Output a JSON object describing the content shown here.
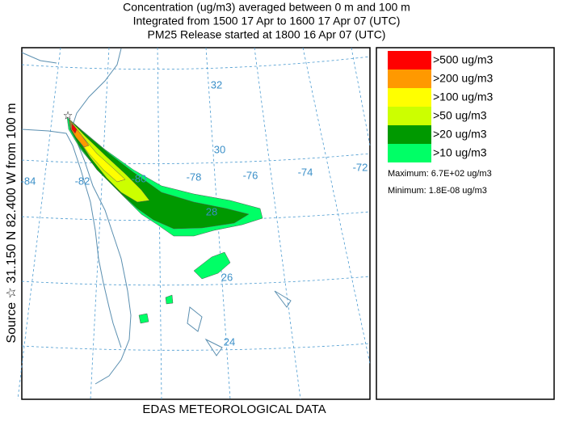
{
  "header": {
    "lines": [
      "Concentration  (ug/m3) averaged between     0 m and   100 m",
      "Integrated from 1500 17 Apr to 1600 17 Apr 07 (UTC)",
      "PM25 Release started at 1800 16 Apr 07 (UTC)"
    ]
  },
  "side_label": "Source ☆ 31.150  N  82.400  W   from  100 m",
  "footer": "EDAS METEOROLOGICAL DATA",
  "map": {
    "lat_labels": [
      "32",
      "30",
      "28",
      "26",
      "24"
    ],
    "lon_labels": [
      "-84",
      "-82",
      "-80",
      "-78",
      "-76",
      "-74",
      "-72"
    ]
  },
  "legend": {
    "entries": [
      {
        "label": ">500 ug/m3",
        "color": "#ff0000"
      },
      {
        "label": ">200 ug/m3",
        "color": "#ff9900"
      },
      {
        "label": ">100 ug/m3",
        "color": "#ffff00"
      },
      {
        "label": ">50 ug/m3",
        "color": "#ccff00"
      },
      {
        "label": ">20 ug/m3",
        "color": "#009900"
      },
      {
        "label": ">10 ug/m3",
        "color": "#00ff66"
      }
    ],
    "maximum": "Maximum: 6.7E+02 ug/m3",
    "minimum": "Minimum: 1.8E-08 ug/m3"
  }
}
